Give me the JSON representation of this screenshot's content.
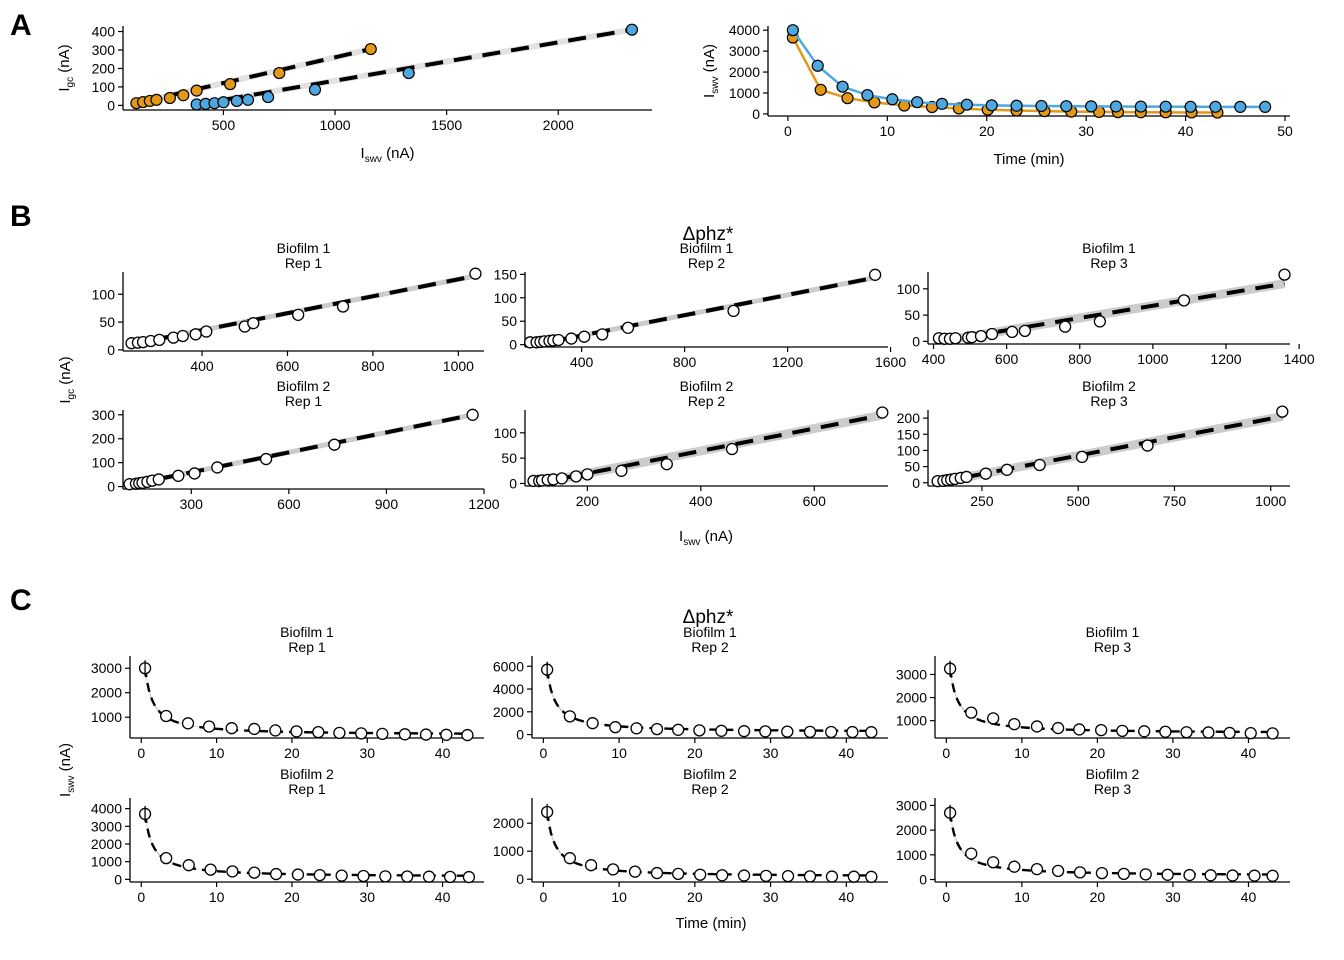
{
  "panel_labels": [
    "A",
    "B",
    "C"
  ],
  "colors": {
    "orange": "#E39817",
    "blue": "#4EA8DF",
    "point_stroke": "#000000",
    "band": "#cccccc",
    "fit": "#000000"
  },
  "panel_b": {
    "title": "Δphz*",
    "ylabel": "I",
    "ylabel_sub": "gc",
    "ylabel_unit": " (nA)",
    "xlabel": "I",
    "xlabel_sub": "swv",
    "xlabel_unit": " (nA)"
  },
  "panel_c": {
    "title": "Δphz*",
    "ylabel": "I",
    "ylabel_sub": "swv",
    "ylabel_unit": " (nA)",
    "xlabel": "Time (min)"
  },
  "chart_data": [
    {
      "id": "A1",
      "type": "scatter",
      "xlabel": "I",
      "xlabel_sub": "swv",
      "xlabel_unit": " (nA)",
      "ylabel": "I",
      "ylabel_sub": "gc",
      "ylabel_unit": " (nA)",
      "xlim": [
        50,
        2420
      ],
      "ylim": [
        -25,
        430
      ],
      "xticks": [
        500,
        1000,
        1500,
        2000
      ],
      "yticks": [
        0,
        100,
        200,
        300,
        400
      ],
      "series": [
        {
          "color": "orange",
          "x": [
            110,
            140,
            170,
            200,
            260,
            320,
            380,
            530,
            750,
            1160
          ],
          "y": [
            12,
            18,
            24,
            30,
            40,
            55,
            80,
            115,
            175,
            305
          ],
          "fit": [
            [
              110,
              12
            ],
            [
              1160,
              305
            ]
          ]
        },
        {
          "color": "blue",
          "x": [
            380,
            420,
            460,
            500,
            560,
            610,
            700,
            910,
            1330,
            2330
          ],
          "y": [
            5,
            8,
            12,
            17,
            24,
            30,
            45,
            85,
            175,
            410
          ],
          "fit": [
            [
              380,
              5
            ],
            [
              2330,
              410
            ]
          ]
        }
      ]
    },
    {
      "id": "A2",
      "type": "line",
      "xlabel": "Time (min)",
      "ylabel": "I",
      "ylabel_sub": "swv",
      "ylabel_unit": " (nA)",
      "xlim": [
        -2,
        50.5
      ],
      "ylim": [
        -100,
        4200
      ],
      "xticks": [
        0,
        10,
        20,
        30,
        40,
        50
      ],
      "yticks": [
        0,
        1000,
        2000,
        3000,
        4000
      ],
      "series": [
        {
          "color": "orange",
          "x": [
            0.5,
            3.3,
            6.0,
            8.7,
            11.7,
            14.5,
            17.2,
            20.1,
            23.0,
            25.8,
            28.5,
            31.3,
            33.2,
            35.5,
            38.0,
            40.6,
            43.2
          ],
          "y": [
            3650,
            1150,
            750,
            550,
            400,
            330,
            260,
            200,
            160,
            130,
            110,
            95,
            85,
            80,
            75,
            70,
            65
          ]
        },
        {
          "color": "blue",
          "x": [
            0.5,
            3.0,
            5.5,
            8.0,
            10.5,
            13.0,
            15.5,
            18.0,
            20.5,
            23.0,
            25.5,
            28.0,
            30.5,
            33.0,
            35.5,
            38.0,
            40.5,
            43.0,
            45.5,
            48.0
          ],
          "y": [
            4000,
            2300,
            1300,
            900,
            700,
            560,
            480,
            440,
            410,
            390,
            380,
            370,
            360,
            355,
            350,
            345,
            340,
            338,
            336,
            335
          ]
        }
      ]
    },
    {
      "id": "B1",
      "type": "scatter",
      "strip": [
        "Biofilm 1",
        "Rep 1"
      ],
      "xlim": [
        215,
        1060
      ],
      "ylim": [
        -2,
        140
      ],
      "xticks": [
        400,
        600,
        800,
        1000
      ],
      "yticks": [
        0,
        50,
        100
      ],
      "x": [
        235,
        250,
        262,
        280,
        300,
        333,
        355,
        385,
        410,
        500,
        520,
        625,
        730,
        1040
      ],
      "y": [
        12,
        13,
        14,
        16,
        18,
        22,
        25,
        28,
        33,
        42,
        48,
        63,
        78,
        137
      ],
      "fit": [
        [
          240,
          11
        ],
        [
          1040,
          133
        ]
      ]
    },
    {
      "id": "B2",
      "type": "scatter",
      "strip": [
        "Biofilm 1",
        "Rep 2"
      ],
      "xlim": [
        180,
        1590
      ],
      "ylim": [
        -5,
        155
      ],
      "xticks": [
        400,
        800,
        1200,
        1600
      ],
      "yticks": [
        0,
        50,
        100,
        150
      ],
      "x": [
        200,
        225,
        240,
        255,
        275,
        290,
        310,
        360,
        410,
        480,
        580,
        990,
        1540
      ],
      "y": [
        5,
        5,
        6,
        7,
        8,
        9,
        10,
        13,
        17,
        22,
        36,
        72,
        149
      ],
      "fit": [
        [
          220,
          0
        ],
        [
          1540,
          143
        ]
      ]
    },
    {
      "id": "B3",
      "type": "scatter",
      "strip": [
        "Biofilm 1",
        "Rep 3"
      ],
      "xlim": [
        385,
        1375
      ],
      "ylim": [
        -5,
        132
      ],
      "xticks": [
        400,
        600,
        800,
        1000,
        1200,
        1400
      ],
      "yticks": [
        0,
        50,
        100
      ],
      "x": [
        415,
        430,
        445,
        460,
        495,
        505,
        530,
        560,
        615,
        650,
        760,
        855,
        1085,
        1360
      ],
      "y": [
        6,
        5,
        5,
        6,
        7,
        8,
        10,
        14,
        18,
        20,
        28,
        38,
        78,
        127
      ],
      "fit": [
        [
          420,
          0
        ],
        [
          1360,
          110
        ]
      ]
    },
    {
      "id": "B4",
      "type": "scatter",
      "strip": [
        "Biofilm 2",
        "Rep 1"
      ],
      "xlim": [
        90,
        1200
      ],
      "ylim": [
        -10,
        320
      ],
      "xticks": [
        300,
        600,
        900,
        1200
      ],
      "yticks": [
        0,
        100,
        200,
        300
      ],
      "x": [
        110,
        130,
        140,
        150,
        165,
        180,
        200,
        260,
        310,
        380,
        530,
        740,
        1165
      ],
      "y": [
        10,
        12,
        14,
        16,
        20,
        25,
        30,
        45,
        55,
        80,
        115,
        175,
        300
      ],
      "fit": [
        [
          110,
          7
        ],
        [
          1165,
          300
        ]
      ]
    },
    {
      "id": "B5",
      "type": "scatter",
      "strip": [
        "Biofilm 2",
        "Rep 2"
      ],
      "xlim": [
        90,
        730
      ],
      "ylim": [
        -5,
        145
      ],
      "xticks": [
        200,
        400,
        600
      ],
      "yticks": [
        0,
        50,
        100
      ],
      "x": [
        105,
        115,
        120,
        130,
        140,
        155,
        180,
        200,
        260,
        340,
        455,
        720
      ],
      "y": [
        5,
        5,
        6,
        7,
        8,
        10,
        14,
        18,
        25,
        38,
        68,
        140
      ],
      "fit": [
        [
          110,
          0
        ],
        [
          720,
          135
        ]
      ]
    },
    {
      "id": "B6",
      "type": "scatter",
      "strip": [
        "Biofilm 2",
        "Rep 3"
      ],
      "xlim": [
        110,
        1050
      ],
      "ylim": [
        -10,
        225
      ],
      "xticks": [
        250,
        500,
        750,
        1000
      ],
      "yticks": [
        0,
        50,
        100,
        150,
        200
      ],
      "x": [
        135,
        150,
        160,
        170,
        180,
        195,
        210,
        260,
        315,
        400,
        510,
        680,
        1030
      ],
      "y": [
        5,
        6,
        8,
        10,
        12,
        15,
        18,
        28,
        40,
        55,
        80,
        115,
        220
      ],
      "fit": [
        [
          140,
          2
        ],
        [
          1030,
          205
        ]
      ]
    },
    {
      "id": "C1",
      "type": "scatter",
      "strip": [
        "Biofilm 1",
        "Rep 1"
      ],
      "xlim": [
        -1.5,
        45.5
      ],
      "ylim": [
        150,
        3500
      ],
      "xticks": [
        0,
        10,
        20,
        30,
        40
      ],
      "yticks": [
        1000,
        2000,
        3000
      ],
      "x": [
        0.5,
        3.3,
        6.2,
        9.0,
        12.0,
        15.0,
        17.8,
        20.6,
        23.5,
        26.3,
        29.2,
        32.0,
        35.0,
        37.8,
        40.5,
        43.3
      ],
      "y": [
        3000,
        1050,
        750,
        620,
        550,
        520,
        460,
        420,
        390,
        360,
        340,
        320,
        300,
        290,
        280,
        270
      ],
      "fit": "decay"
    },
    {
      "id": "C2",
      "type": "scatter",
      "strip": [
        "Biofilm 1",
        "Rep 2"
      ],
      "xlim": [
        -1.5,
        45.5
      ],
      "ylim": [
        -300,
        6900
      ],
      "xticks": [
        0,
        10,
        20,
        30,
        40
      ],
      "yticks": [
        0,
        2000,
        4000,
        6000
      ],
      "x": [
        0.5,
        3.5,
        6.5,
        9.5,
        12.3,
        15.0,
        17.8,
        20.6,
        23.5,
        26.5,
        29.3,
        32.2,
        35.2,
        38.0,
        40.8,
        43.3
      ],
      "y": [
        5700,
        1600,
        1000,
        650,
        550,
        480,
        420,
        370,
        330,
        300,
        280,
        260,
        240,
        230,
        220,
        210
      ],
      "fit": "decay"
    },
    {
      "id": "C3",
      "type": "scatter",
      "strip": [
        "Biofilm 1",
        "Rep 3"
      ],
      "xlim": [
        -1.5,
        45.5
      ],
      "ylim": [
        250,
        3800
      ],
      "xticks": [
        0,
        10,
        20,
        30,
        40
      ],
      "yticks": [
        1000,
        2000,
        3000
      ],
      "x": [
        0.5,
        3.3,
        6.2,
        9.0,
        12.0,
        14.8,
        17.6,
        20.5,
        23.3,
        26.2,
        29.0,
        31.8,
        34.7,
        37.5,
        40.3,
        43.2
      ],
      "y": [
        3250,
        1350,
        1100,
        850,
        750,
        680,
        620,
        590,
        560,
        540,
        520,
        500,
        490,
        470,
        460,
        450
      ],
      "fit": "decay"
    },
    {
      "id": "C4",
      "type": "scatter",
      "strip": [
        "Biofilm 2",
        "Rep 1"
      ],
      "xlim": [
        -1.5,
        45.5
      ],
      "ylim": [
        -150,
        4600
      ],
      "xticks": [
        0,
        10,
        20,
        30,
        40
      ],
      "yticks": [
        0,
        1000,
        2000,
        3000,
        4000
      ],
      "x": [
        0.5,
        3.3,
        6.3,
        9.2,
        12.1,
        15.0,
        17.9,
        20.8,
        23.7,
        26.6,
        29.5,
        32.4,
        35.3,
        38.2,
        41.0,
        43.5
      ],
      "y": [
        3700,
        1200,
        800,
        550,
        450,
        380,
        300,
        270,
        240,
        210,
        190,
        170,
        160,
        150,
        140,
        130
      ],
      "fit": "decay"
    },
    {
      "id": "C5",
      "type": "scatter",
      "strip": [
        "Biofilm 2",
        "Rep 2"
      ],
      "xlim": [
        -1.5,
        45.5
      ],
      "ylim": [
        -100,
        2900
      ],
      "xticks": [
        0,
        10,
        20,
        30,
        40
      ],
      "yticks": [
        0,
        1000,
        2000
      ],
      "x": [
        0.5,
        3.5,
        6.3,
        9.2,
        12.1,
        15.0,
        17.8,
        20.7,
        23.6,
        26.5,
        29.4,
        32.3,
        35.2,
        38.1,
        41.0,
        43.3
      ],
      "y": [
        2400,
        750,
        500,
        350,
        270,
        220,
        190,
        160,
        140,
        130,
        120,
        110,
        100,
        95,
        90,
        85
      ],
      "fit": "decay"
    },
    {
      "id": "C6",
      "type": "scatter",
      "strip": [
        "Biofilm 2",
        "Rep 3"
      ],
      "xlim": [
        -1.5,
        45.5
      ],
      "ylim": [
        -100,
        3300
      ],
      "xticks": [
        0,
        10,
        20,
        30,
        40
      ],
      "yticks": [
        0,
        1000,
        2000,
        3000
      ],
      "x": [
        0.5,
        3.3,
        6.2,
        9.0,
        12.0,
        14.8,
        17.7,
        20.6,
        23.5,
        26.4,
        29.3,
        32.2,
        35.0,
        37.9,
        40.8,
        43.2
      ],
      "y": [
        2700,
        1050,
        700,
        520,
        420,
        350,
        290,
        260,
        230,
        210,
        190,
        180,
        170,
        160,
        155,
        150
      ],
      "fit": "decay"
    }
  ]
}
